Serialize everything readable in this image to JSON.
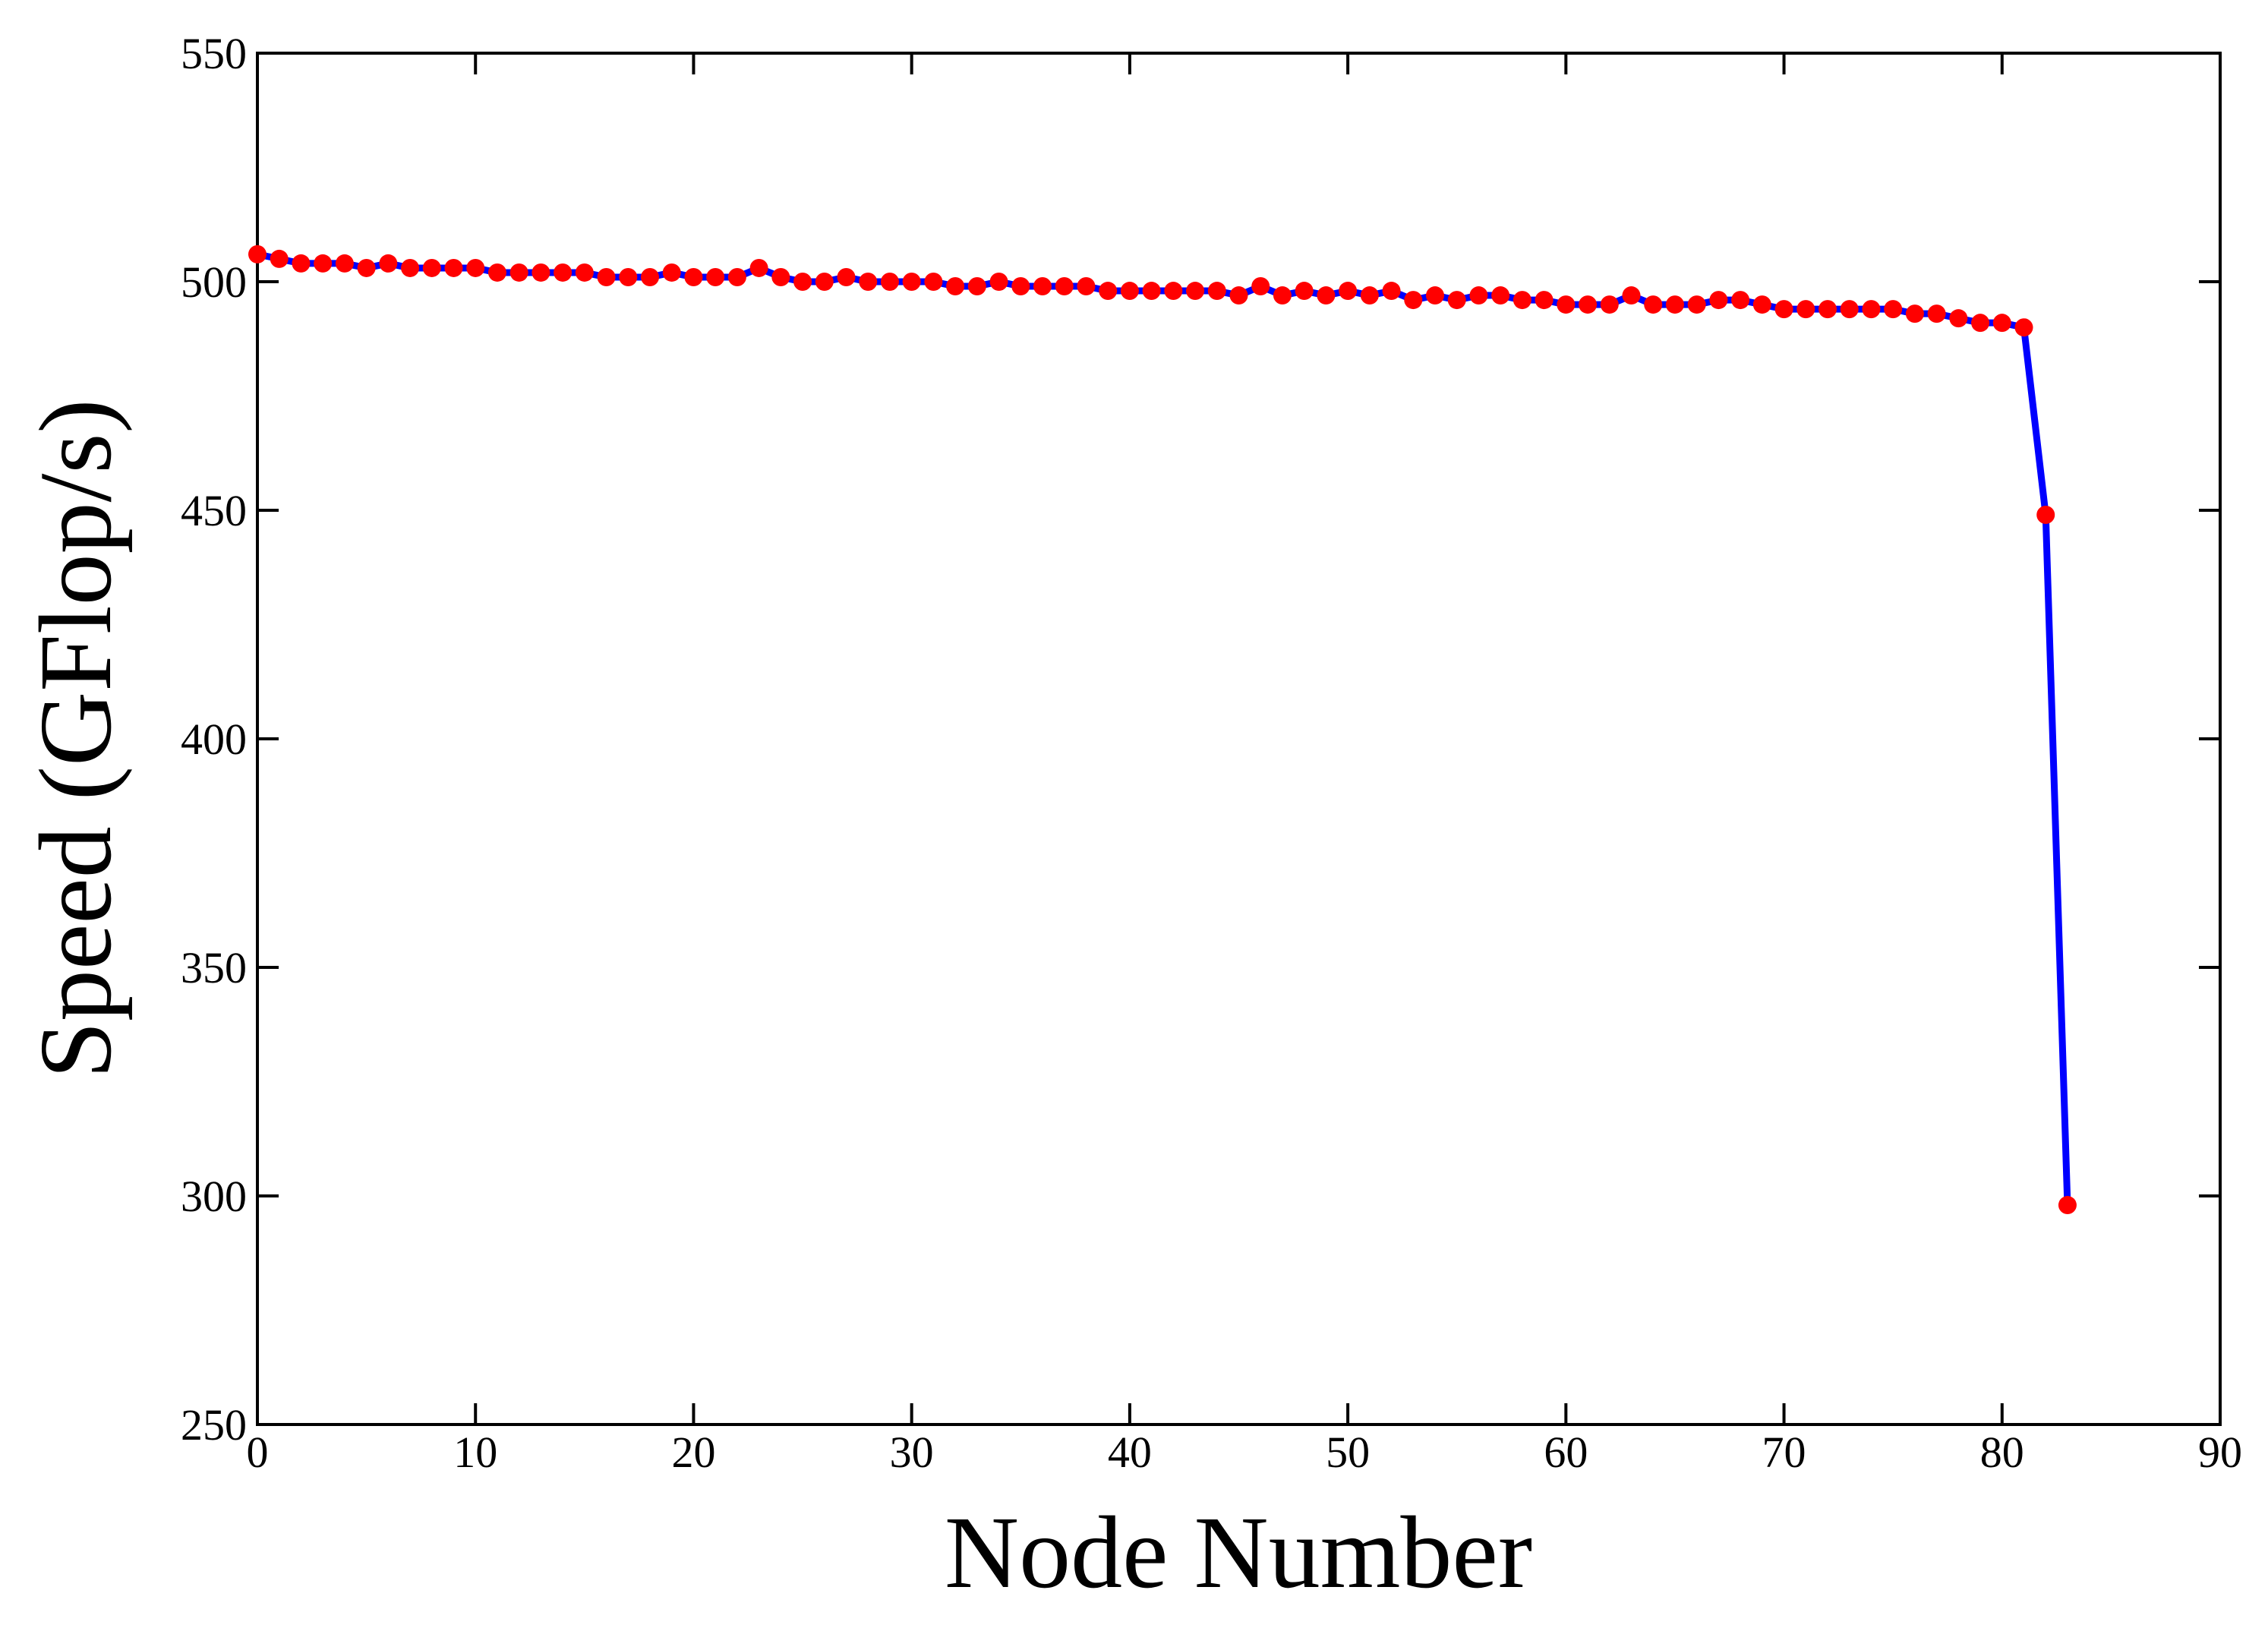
{
  "chart_data": {
    "type": "line",
    "xlabel": "Node Number",
    "ylabel": "Speed (GFlop/s)",
    "x": [
      0,
      1,
      2,
      3,
      4,
      5,
      6,
      7,
      8,
      9,
      10,
      11,
      12,
      13,
      14,
      15,
      16,
      17,
      18,
      19,
      20,
      21,
      22,
      23,
      24,
      25,
      26,
      27,
      28,
      29,
      30,
      31,
      32,
      33,
      34,
      35,
      36,
      37,
      38,
      39,
      40,
      41,
      42,
      43,
      44,
      45,
      46,
      47,
      48,
      49,
      50,
      51,
      52,
      53,
      54,
      55,
      56,
      57,
      58,
      59,
      60,
      61,
      62,
      63,
      64,
      65,
      66,
      67,
      68,
      69,
      70,
      71,
      72,
      73,
      74,
      75,
      76,
      77,
      78,
      79,
      80,
      81,
      82,
      83
    ],
    "values": [
      506,
      505,
      504,
      504,
      504,
      503,
      504,
      503,
      503,
      503,
      503,
      502,
      502,
      502,
      502,
      502,
      501,
      501,
      501,
      502,
      501,
      501,
      501,
      503,
      501,
      500,
      500,
      501,
      500,
      500,
      500,
      500,
      499,
      499,
      500,
      499,
      499,
      499,
      499,
      498,
      498,
      498,
      498,
      498,
      498,
      497,
      499,
      497,
      498,
      497,
      498,
      497,
      498,
      496,
      497,
      496,
      497,
      497,
      496,
      496,
      495,
      495,
      495,
      497,
      495,
      495,
      495,
      496,
      496,
      495,
      494,
      494,
      494,
      494,
      494,
      494,
      493,
      493,
      492,
      491,
      491,
      490,
      449,
      298
    ],
    "color": "#0000ff",
    "marker_color": "#ff0000",
    "xlim": [
      0,
      90
    ],
    "xticks": [
      0,
      10,
      20,
      30,
      40,
      50,
      60,
      70,
      80,
      90
    ],
    "ylim": [
      250,
      550
    ],
    "yticks": [
      250,
      300,
      350,
      400,
      450,
      500,
      550
    ]
  }
}
